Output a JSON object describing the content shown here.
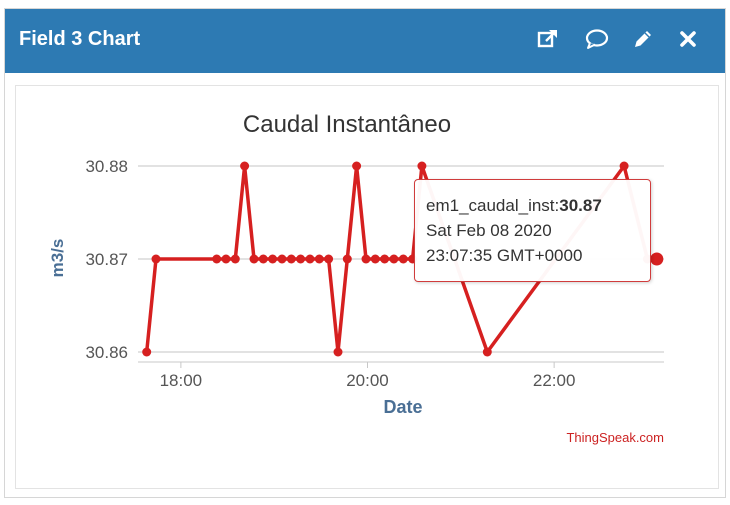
{
  "header": {
    "title": "Field 3 Chart",
    "buttons": [
      "open-external-icon",
      "comment-icon",
      "pencil-icon",
      "close-icon"
    ],
    "background_color": "#2d7ab3"
  },
  "chart_data": {
    "type": "line",
    "title": "Caudal Instantâneo",
    "xlabel": "Date",
    "ylabel": "m3/s",
    "x_ticks": [
      "18:00",
      "20:00",
      "22:00"
    ],
    "y_ticks": [
      "30.86",
      "30.87",
      "30.88"
    ],
    "ylim": [
      30.86,
      30.88
    ],
    "xlim": [
      "17:35",
      "23:10"
    ],
    "grid": true,
    "color": "#d62020",
    "series": [
      {
        "name": "em1_caudal_inst",
        "x": [
          "17:38",
          "17:44",
          "18:23",
          "18:29",
          "18:35",
          "18:41",
          "18:47",
          "18:53",
          "18:59",
          "19:05",
          "19:11",
          "19:17",
          "19:23",
          "19:29",
          "19:35",
          "19:41",
          "19:47",
          "19:53",
          "19:59",
          "20:05",
          "20:11",
          "20:17",
          "20:23",
          "20:29",
          "20:35",
          "21:17",
          "22:45",
          "23:00",
          "23:06"
        ],
        "y": [
          30.86,
          30.87,
          30.87,
          30.87,
          30.87,
          30.88,
          30.87,
          30.87,
          30.87,
          30.87,
          30.87,
          30.87,
          30.87,
          30.87,
          30.87,
          30.86,
          30.87,
          30.88,
          30.87,
          30.87,
          30.87,
          30.87,
          30.87,
          30.87,
          30.88,
          30.86,
          30.88,
          30.87,
          30.87
        ]
      }
    ],
    "tooltip": {
      "series_label": "em1_caudal_inst:",
      "value": "30.87",
      "date_line": "Sat Feb 08 2020",
      "time_line": "23:07:35 GMT+0000"
    },
    "credit": "ThingSpeak.com"
  }
}
